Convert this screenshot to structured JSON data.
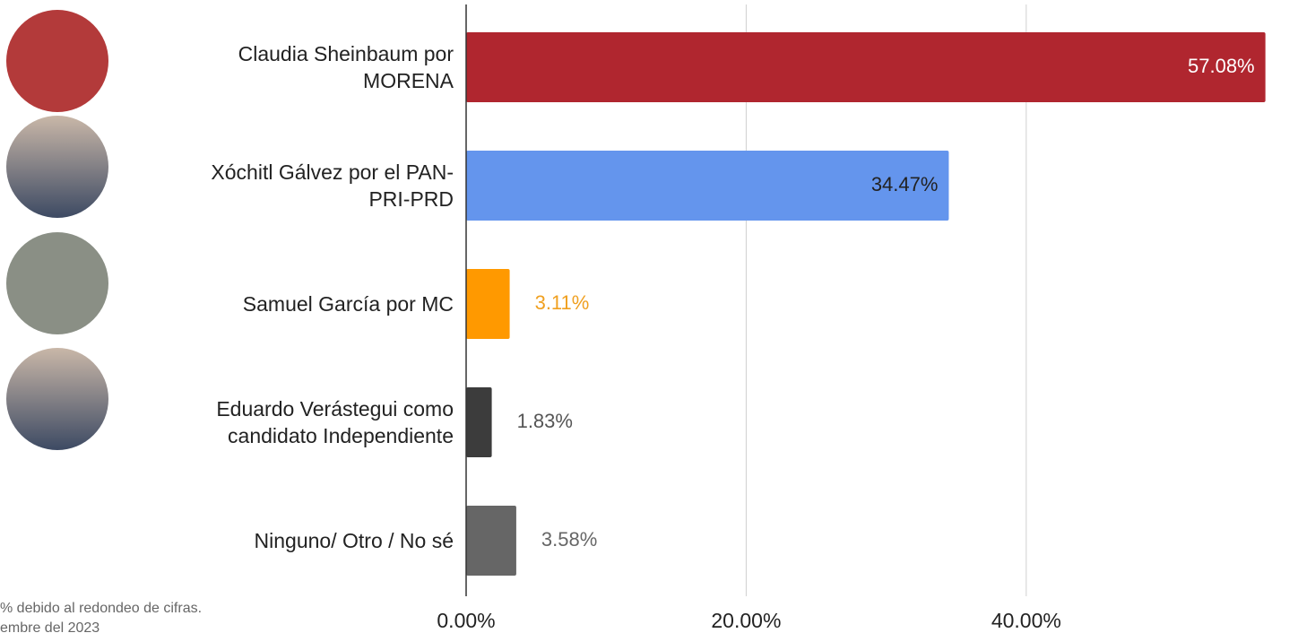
{
  "chart_data": {
    "type": "barh",
    "categories": [
      "Claudia Sheinbaum por\nMORENA",
      "Xóchitl Gálvez por el PAN-\nPRI-PRD",
      "Samuel García por MC",
      "Eduardo Verástegui como\ncandidato Independiente",
      "Ninguno/ Otro / No sé"
    ],
    "values": [
      57.08,
      34.47,
      3.11,
      1.83,
      3.58
    ],
    "value_labels": [
      "57.08%",
      "34.47%",
      "3.11%",
      "1.83%",
      "3.58%"
    ],
    "colors": [
      "#b0262f",
      "#6495ed",
      "#ff9900",
      "#3c3c3c",
      "#666666"
    ],
    "value_label_colors": [
      "#ffffff",
      "#222222",
      "#f0a020",
      "#555555",
      "#666666"
    ],
    "xlim": [
      0,
      58
    ],
    "xticks": [
      {
        "value": 0,
        "label": "0.00%"
      },
      {
        "value": 20,
        "label": "20.00%"
      },
      {
        "value": 40,
        "label": "40.00%"
      }
    ],
    "grid": true,
    "notes": [
      "% debido al redondeo de cifras.",
      "embre del 2023"
    ]
  }
}
